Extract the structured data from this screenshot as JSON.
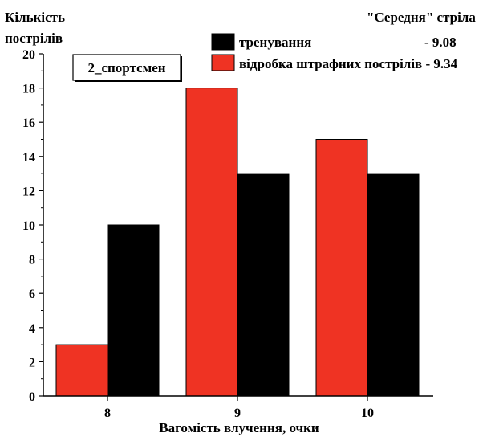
{
  "chart_data": {
    "type": "bar",
    "categories": [
      "8",
      "9",
      "10"
    ],
    "series": [
      {
        "name": "відробка штрафних пострілів",
        "values": [
          3,
          18,
          15
        ],
        "color": "#ef3323"
      },
      {
        "name": "тренування",
        "values": [
          10,
          13,
          13
        ],
        "color": "#000000"
      }
    ],
    "ylim": [
      0,
      20
    ],
    "yticks": [
      0,
      2,
      4,
      6,
      8,
      10,
      12,
      14,
      16,
      18,
      20
    ],
    "ylabel_line1": "Кількість",
    "ylabel_line2": "пострілів",
    "xlabel": "Вагомість влучення, очки",
    "annotation_box": "2_спортсмен",
    "legend": {
      "placement": "top-right",
      "header": "\"Середня\" стріла",
      "entries": [
        {
          "label": "тренування",
          "value": "- 9.08",
          "color": "#000000"
        },
        {
          "label": "відробка штрафних пострілів - 9.34",
          "color": "#ef3323"
        }
      ]
    },
    "grid": false
  }
}
